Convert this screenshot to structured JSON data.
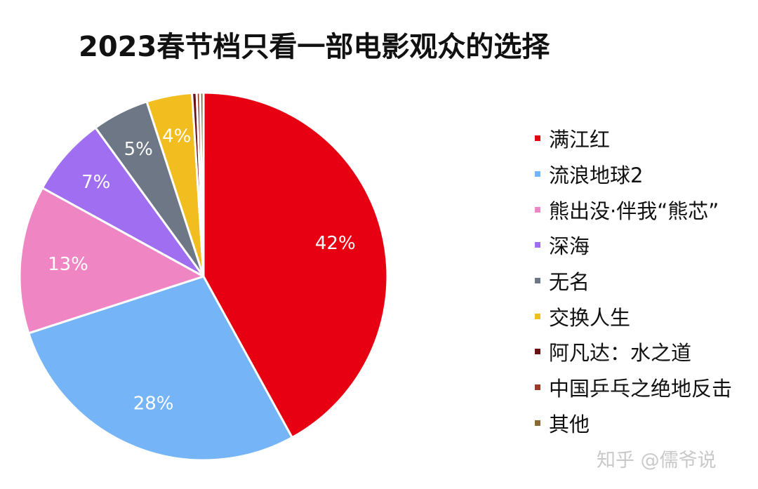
{
  "chart_data": {
    "type": "pie",
    "title": "2023春节档只看一部电影观众的选择",
    "legend_position": "right",
    "slices": [
      {
        "label": "满江红",
        "value": 42,
        "value_label": "42%",
        "color": "#e60012"
      },
      {
        "label": "流浪地球2",
        "value": 28,
        "value_label": "28%",
        "color": "#74b4f7"
      },
      {
        "label": "熊出没·伴我“熊芯”",
        "value": 13,
        "value_label": "13%",
        "color": "#ef86c3"
      },
      {
        "label": "深海",
        "value": 7,
        "value_label": "7%",
        "color": "#a06ef0"
      },
      {
        "label": "无名",
        "value": 5,
        "value_label": "5%",
        "color": "#6e7785"
      },
      {
        "label": "交换人生",
        "value": 4,
        "value_label": "4%",
        "color": "#f2bd1e"
      },
      {
        "label": "阿凡达：水之道",
        "value": 0.4,
        "value_label": "",
        "color": "#6b0f14"
      },
      {
        "label": "中国乒乓之绝地反击",
        "value": 0.3,
        "value_label": "",
        "color": "#9c3a28"
      },
      {
        "label": "其他",
        "value": 0.3,
        "value_label": "",
        "color": "#8a6d2c"
      }
    ]
  },
  "watermark": "知乎 @儒爷说"
}
